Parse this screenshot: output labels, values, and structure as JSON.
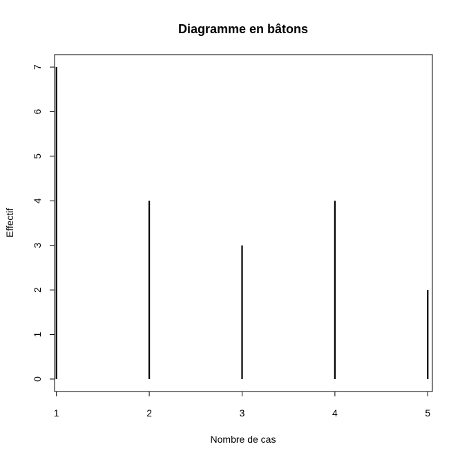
{
  "chart_data": {
    "type": "bar",
    "style": "needle",
    "title": "Diagramme en bâtons",
    "xlabel": "Nombre de cas",
    "ylabel": "Effectif",
    "categories": [
      "1",
      "2",
      "3",
      "4",
      "5"
    ],
    "x": [
      1,
      2,
      3,
      4,
      5
    ],
    "values": [
      7,
      4,
      3,
      4,
      2
    ],
    "xticks": [
      "1",
      "2",
      "3",
      "4",
      "5"
    ],
    "yticks": [
      "0",
      "1",
      "2",
      "3",
      "4",
      "5",
      "6",
      "7"
    ],
    "xlim": [
      0.98,
      5.05
    ],
    "ylim": [
      -0.28,
      7.28
    ],
    "grid": false,
    "bar_color": "#000000"
  }
}
